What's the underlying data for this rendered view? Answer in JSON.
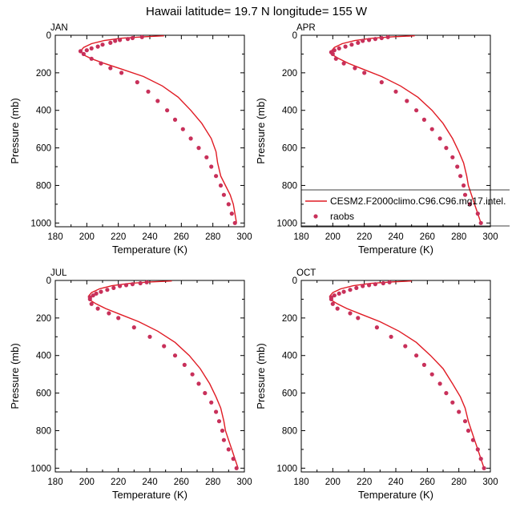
{
  "title": "Hawaii  latitude= 19.7 N longitude= 155 W",
  "colors": {
    "model_line": "#e01b24",
    "obs_marker": "#c8305a",
    "axis": "#000000"
  },
  "legend": {
    "model_label": "CESM2.F2000climo.C96.C96.mg17.intel.",
    "obs_label": "raobs",
    "placement": "right of APR panel, lower half"
  },
  "chart_data": [
    {
      "type": "line",
      "panel_label": "JAN",
      "xlabel": "Temperature (K)",
      "ylabel": "Pressure (mb)",
      "xlim": [
        180,
        300
      ],
      "ylim": [
        1020,
        0
      ],
      "y_inverted": true,
      "xticks": [
        180,
        200,
        220,
        240,
        260,
        280,
        300
      ],
      "yticks": [
        0,
        200,
        400,
        600,
        800,
        1000
      ],
      "grid": false,
      "series": [
        {
          "name": "CESM2.F2000climo.C96.C96.mg17.intel.",
          "kind": "line",
          "points": [
            [
              249,
              3
            ],
            [
              236,
              8
            ],
            [
              222,
              16
            ],
            [
              211,
              28
            ],
            [
              203,
              45
            ],
            [
              198,
              65
            ],
            [
              196,
              85
            ],
            [
              198,
              105
            ],
            [
              203,
              125
            ],
            [
              211,
              150
            ],
            [
              222,
              180
            ],
            [
              236,
              220
            ],
            [
              248,
              270
            ],
            [
              258,
              330
            ],
            [
              266,
              400
            ],
            [
              273,
              470
            ],
            [
              279,
              550
            ],
            [
              282,
              620
            ],
            [
              283,
              680
            ],
            [
              285,
              750
            ],
            [
              288,
              800
            ],
            [
              291,
              850
            ],
            [
              293,
              900
            ],
            [
              294,
              950
            ],
            [
              295,
              1000
            ]
          ]
        },
        {
          "name": "raobs",
          "kind": "scatter",
          "points": [
            [
              235,
              10
            ],
            [
              229,
              15
            ],
            [
              226,
              20
            ],
            [
              221,
              25
            ],
            [
              218,
              30
            ],
            [
              215,
              40
            ],
            [
              210,
              50
            ],
            [
              207,
              60
            ],
            [
              203,
              70
            ],
            [
              200,
              80
            ],
            [
              196,
              85
            ],
            [
              198,
              100
            ],
            [
              203,
              125
            ],
            [
              209,
              150
            ],
            [
              215,
              175
            ],
            [
              222,
              200
            ],
            [
              232,
              250
            ],
            [
              239,
              300
            ],
            [
              245,
              350
            ],
            [
              251,
              400
            ],
            [
              256,
              450
            ],
            [
              261,
              500
            ],
            [
              266,
              550
            ],
            [
              271,
              600
            ],
            [
              276,
              650
            ],
            [
              279,
              700
            ],
            [
              282,
              750
            ],
            [
              285,
              800
            ],
            [
              287,
              850
            ],
            [
              290,
              900
            ],
            [
              292,
              950
            ],
            [
              294,
              1000
            ]
          ]
        }
      ]
    },
    {
      "type": "line",
      "panel_label": "APR",
      "xlabel": "Temperature (K)",
      "ylabel": "Pressure (mb)",
      "xlim": [
        180,
        300
      ],
      "ylim": [
        1020,
        0
      ],
      "y_inverted": true,
      "xticks": [
        180,
        200,
        220,
        240,
        260,
        280,
        300
      ],
      "yticks": [
        0,
        200,
        400,
        600,
        800,
        1000
      ],
      "grid": false,
      "series": [
        {
          "name": "CESM2.F2000climo.C96.C96.mg17.intel.",
          "kind": "line",
          "points": [
            [
              252,
              3
            ],
            [
              238,
              8
            ],
            [
              225,
              16
            ],
            [
              214,
              28
            ],
            [
              206,
              45
            ],
            [
              201,
              65
            ],
            [
              199,
              85
            ],
            [
              200,
              105
            ],
            [
              204,
              125
            ],
            [
              210,
              150
            ],
            [
              219,
              180
            ],
            [
              231,
              220
            ],
            [
              243,
              270
            ],
            [
              254,
              330
            ],
            [
              263,
              400
            ],
            [
              270,
              470
            ],
            [
              276,
              550
            ],
            [
              280,
              620
            ],
            [
              283,
              680
            ],
            [
              285,
              750
            ],
            [
              286,
              800
            ],
            [
              288,
              850
            ],
            [
              290,
              900
            ],
            [
              292,
              950
            ],
            [
              294,
              1000
            ]
          ]
        },
        {
          "name": "raobs",
          "kind": "scatter",
          "points": [
            [
              235,
              10
            ],
            [
              231,
              15
            ],
            [
              227,
              20
            ],
            [
              223,
              25
            ],
            [
              219,
              30
            ],
            [
              216,
              40
            ],
            [
              212,
              50
            ],
            [
              208,
              60
            ],
            [
              204,
              70
            ],
            [
              201,
              80
            ],
            [
              199,
              90
            ],
            [
              200,
              100
            ],
            [
              202,
              125
            ],
            [
              207,
              150
            ],
            [
              214,
              175
            ],
            [
              220,
              200
            ],
            [
              231,
              250
            ],
            [
              240,
              300
            ],
            [
              247,
              350
            ],
            [
              253,
              400
            ],
            [
              258,
              450
            ],
            [
              263,
              500
            ],
            [
              268,
              550
            ],
            [
              272,
              600
            ],
            [
              276,
              650
            ],
            [
              279,
              700
            ],
            [
              281,
              750
            ],
            [
              283,
              800
            ],
            [
              284,
              850
            ],
            [
              287,
              900
            ],
            [
              292,
              950
            ],
            [
              294,
              1000
            ]
          ]
        }
      ]
    },
    {
      "type": "line",
      "panel_label": "JUL",
      "xlabel": "Temperature (K)",
      "ylabel": "Pressure (mb)",
      "xlim": [
        180,
        300
      ],
      "ylim": [
        1020,
        0
      ],
      "y_inverted": true,
      "xticks": [
        180,
        200,
        220,
        240,
        260,
        280,
        300
      ],
      "yticks": [
        0,
        200,
        400,
        600,
        800,
        1000
      ],
      "grid": false,
      "series": [
        {
          "name": "CESM2.F2000climo.C96.C96.mg17.intel.",
          "kind": "line",
          "points": [
            [
              254,
              3
            ],
            [
              240,
              8
            ],
            [
              227,
              16
            ],
            [
              216,
              28
            ],
            [
              208,
              45
            ],
            [
              203,
              65
            ],
            [
              201,
              85
            ],
            [
              202,
              105
            ],
            [
              206,
              125
            ],
            [
              212,
              150
            ],
            [
              221,
              180
            ],
            [
              233,
              220
            ],
            [
              245,
              270
            ],
            [
              256,
              330
            ],
            [
              265,
              400
            ],
            [
              272,
              470
            ],
            [
              278,
              550
            ],
            [
              282,
              620
            ],
            [
              285,
              680
            ],
            [
              287,
              750
            ],
            [
              288,
              800
            ],
            [
              290,
              850
            ],
            [
              292,
              900
            ],
            [
              294,
              950
            ],
            [
              296,
              1000
            ]
          ]
        },
        {
          "name": "raobs",
          "kind": "scatter",
          "points": [
            [
              238,
              10
            ],
            [
              234,
              15
            ],
            [
              229,
              20
            ],
            [
              225,
              25
            ],
            [
              221,
              30
            ],
            [
              217,
              40
            ],
            [
              213,
              50
            ],
            [
              209,
              60
            ],
            [
              206,
              70
            ],
            [
              204,
              80
            ],
            [
              202,
              90
            ],
            [
              202,
              100
            ],
            [
              203,
              125
            ],
            [
              207,
              150
            ],
            [
              214,
              175
            ],
            [
              220,
              200
            ],
            [
              230,
              250
            ],
            [
              240,
              300
            ],
            [
              249,
              350
            ],
            [
              256,
              400
            ],
            [
              262,
              450
            ],
            [
              267,
              500
            ],
            [
              271,
              550
            ],
            [
              275,
              600
            ],
            [
              279,
              650
            ],
            [
              282,
              700
            ],
            [
              284,
              750
            ],
            [
              286,
              800
            ],
            [
              287,
              850
            ],
            [
              290,
              900
            ],
            [
              293,
              950
            ],
            [
              295,
              1000
            ]
          ]
        }
      ]
    },
    {
      "type": "line",
      "panel_label": "OCT",
      "xlabel": "Temperature (K)",
      "ylabel": "Pressure (mb)",
      "xlim": [
        180,
        300
      ],
      "ylim": [
        1020,
        0
      ],
      "y_inverted": true,
      "xticks": [
        180,
        200,
        220,
        240,
        260,
        280,
        300
      ],
      "yticks": [
        0,
        200,
        400,
        600,
        800,
        1000
      ],
      "grid": false,
      "series": [
        {
          "name": "CESM2.F2000climo.C96.C96.mg17.intel.",
          "kind": "line",
          "points": [
            [
              250,
              3
            ],
            [
              237,
              8
            ],
            [
              224,
              16
            ],
            [
              213,
              28
            ],
            [
              205,
              45
            ],
            [
              200,
              65
            ],
            [
              198,
              85
            ],
            [
              199,
              105
            ],
            [
              203,
              125
            ],
            [
              209,
              150
            ],
            [
              218,
              180
            ],
            [
              230,
              220
            ],
            [
              242,
              270
            ],
            [
              253,
              330
            ],
            [
              262,
              400
            ],
            [
              270,
              470
            ],
            [
              276,
              550
            ],
            [
              281,
              620
            ],
            [
              284,
              680
            ],
            [
              286,
              750
            ],
            [
              288,
              800
            ],
            [
              290,
              850
            ],
            [
              292,
              900
            ],
            [
              294,
              950
            ],
            [
              296,
              1000
            ]
          ]
        },
        {
          "name": "raobs",
          "kind": "scatter",
          "points": [
            [
              236,
              10
            ],
            [
              232,
              15
            ],
            [
              227,
              20
            ],
            [
              223,
              25
            ],
            [
              219,
              30
            ],
            [
              215,
              40
            ],
            [
              211,
              50
            ],
            [
              207,
              60
            ],
            [
              204,
              70
            ],
            [
              201,
              80
            ],
            [
              199,
              90
            ],
            [
              199,
              100
            ],
            [
              200,
              125
            ],
            [
              203,
              150
            ],
            [
              211,
              175
            ],
            [
              216,
              200
            ],
            [
              228,
              250
            ],
            [
              237,
              300
            ],
            [
              246,
              350
            ],
            [
              253,
              400
            ],
            [
              258,
              450
            ],
            [
              263,
              500
            ],
            [
              268,
              550
            ],
            [
              272,
              600
            ],
            [
              276,
              650
            ],
            [
              280,
              700
            ],
            [
              284,
              750
            ],
            [
              286,
              800
            ],
            [
              289,
              850
            ],
            [
              292,
              900
            ],
            [
              294,
              950
            ],
            [
              296,
              1000
            ]
          ]
        }
      ]
    }
  ]
}
